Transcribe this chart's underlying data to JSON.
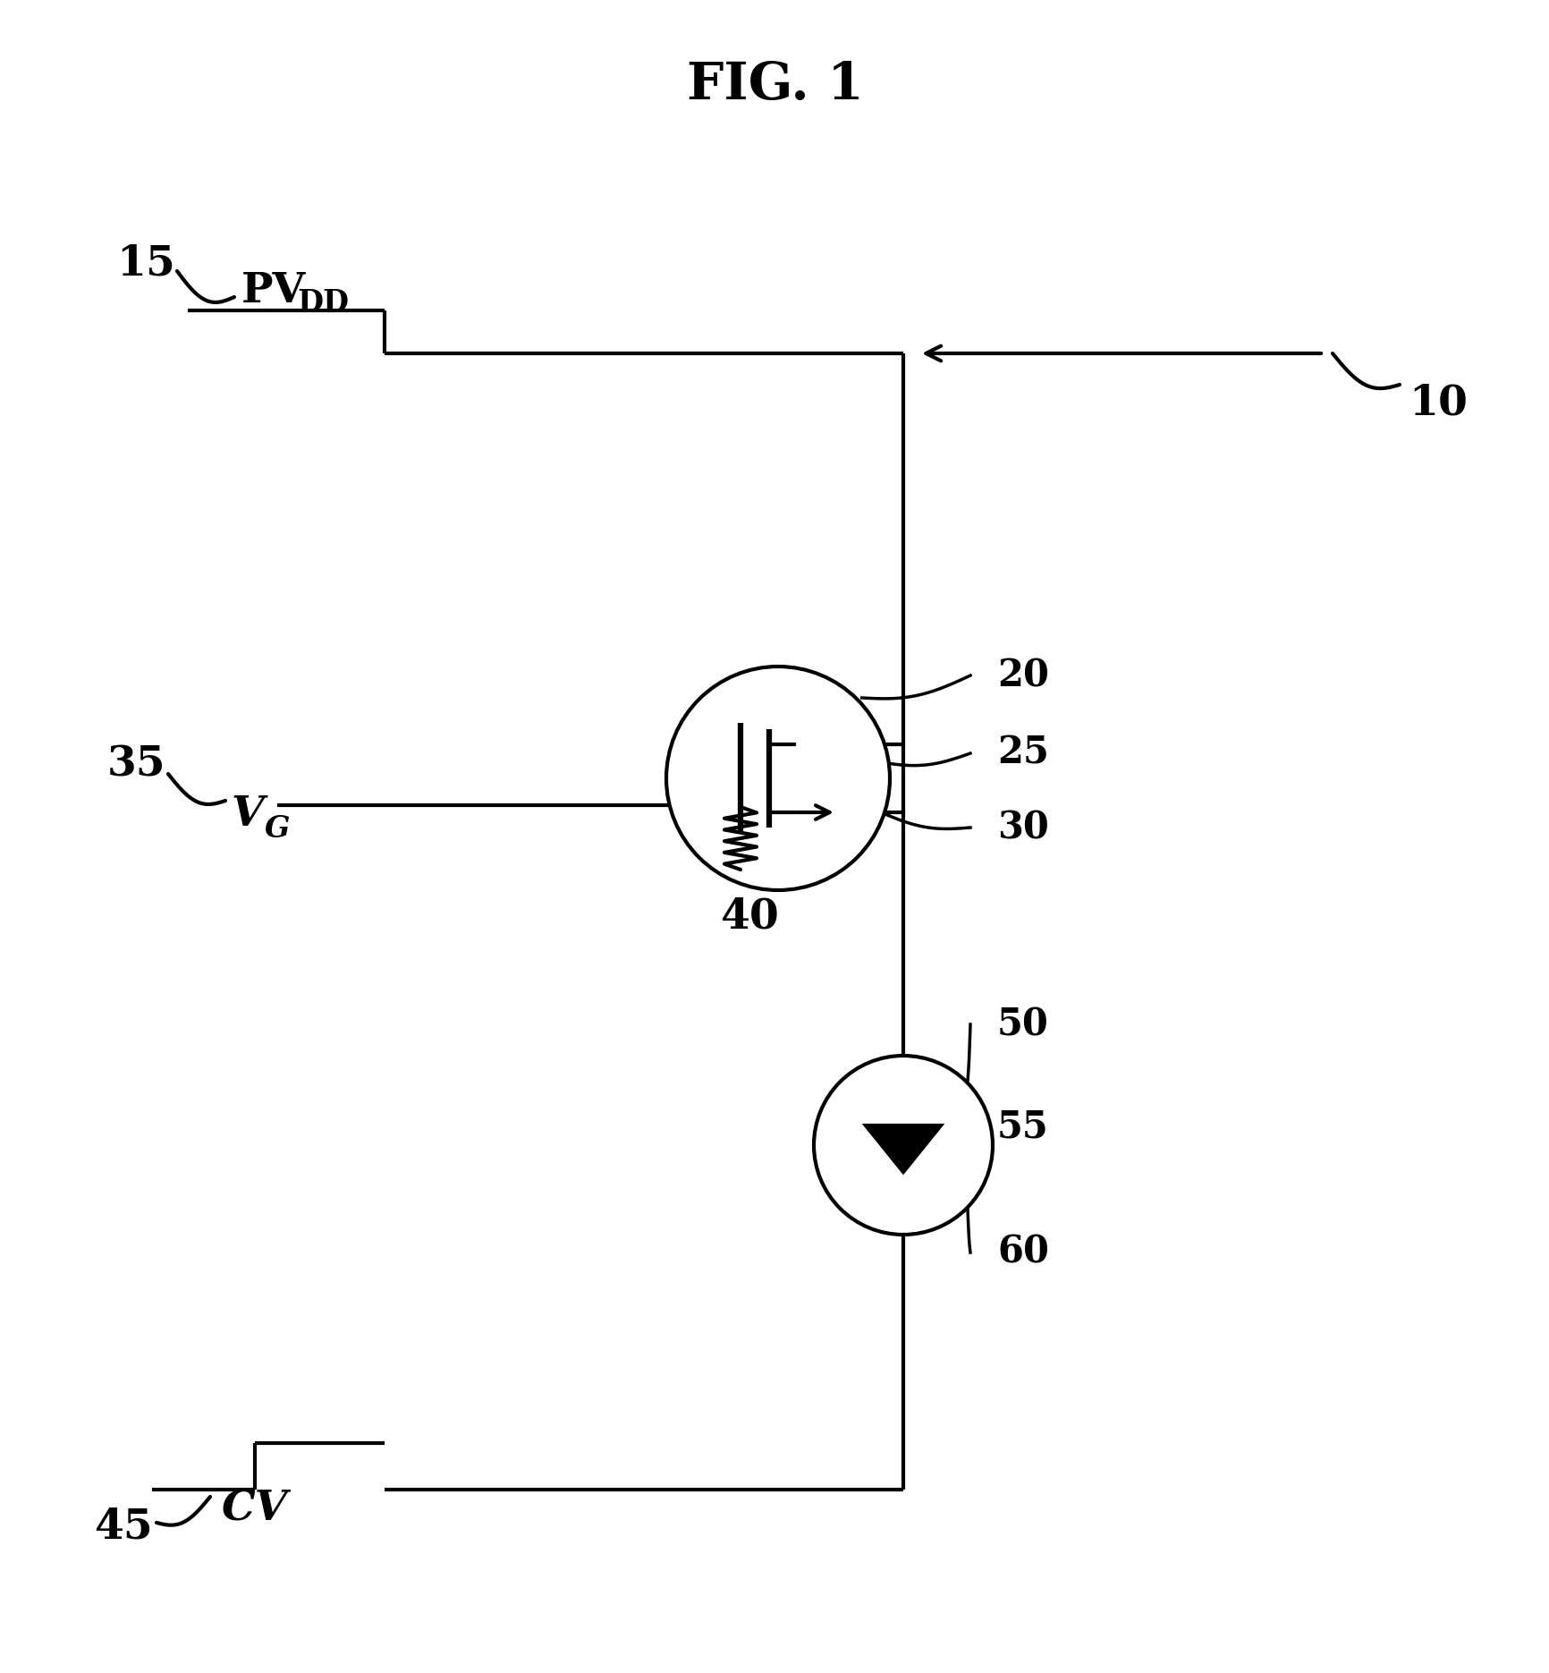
{
  "title": "FIG. 1",
  "background_color": "#ffffff",
  "fig_width": 17.33,
  "fig_height": 18.7,
  "dpi": 100,
  "line_color": "#000000",
  "line_width": 3.0,
  "labels": {
    "pvdd_main": "PV",
    "pvdd_sub": "DD",
    "vg_main": "V",
    "vg_sub": "G",
    "cv": "CV",
    "num_15": "15",
    "num_35": "35",
    "num_45": "45",
    "num_10": "10",
    "num_20": "20",
    "num_25": "25",
    "num_30": "30",
    "num_40": "40",
    "num_50": "50",
    "num_55": "55",
    "num_60": "60"
  }
}
